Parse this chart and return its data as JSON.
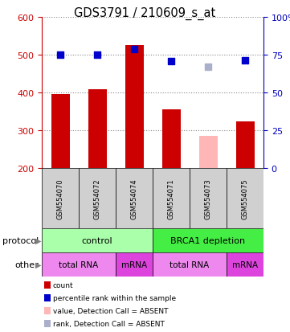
{
  "title": "GDS3791 / 210609_s_at",
  "samples": [
    "GSM554070",
    "GSM554072",
    "GSM554074",
    "GSM554071",
    "GSM554073",
    "GSM554075"
  ],
  "bar_values": [
    395,
    408,
    525,
    355,
    null,
    323
  ],
  "absent_bar_values": [
    null,
    null,
    null,
    null,
    285,
    null
  ],
  "absent_bar_color": "#ffb6b6",
  "bar_color": "#cc0000",
  "dot_values": [
    500,
    500,
    515,
    483,
    null,
    486
  ],
  "dot_color": "#0000cc",
  "absent_dot_values": [
    null,
    null,
    null,
    null,
    468,
    null
  ],
  "absent_dot_color": "#aab0cc",
  "ylim_left": [
    200,
    600
  ],
  "ylim_right": [
    0,
    100
  ],
  "left_ticks": [
    200,
    300,
    400,
    500,
    600
  ],
  "right_ticks": [
    0,
    25,
    50,
    75,
    100
  ],
  "right_tick_labels": [
    "0",
    "25",
    "50",
    "75",
    "100%"
  ],
  "left_tick_color": "#cc0000",
  "right_tick_color": "#0000bb",
  "protocol_color_light": "#aaffaa",
  "protocol_color_bright": "#44ee44",
  "other_color_light": "#ee88ee",
  "other_color_bright": "#dd44dd",
  "sample_bg_color": "#d0d0d0",
  "grid_color": "#888888",
  "bar_bottom": 200,
  "bar_width": 0.5,
  "dot_size": 35,
  "legend_items": [
    [
      "#cc0000",
      "count"
    ],
    [
      "#0000cc",
      "percentile rank within the sample"
    ],
    [
      "#ffb6b6",
      "value, Detection Call = ABSENT"
    ],
    [
      "#aab0cc",
      "rank, Detection Call = ABSENT"
    ]
  ]
}
